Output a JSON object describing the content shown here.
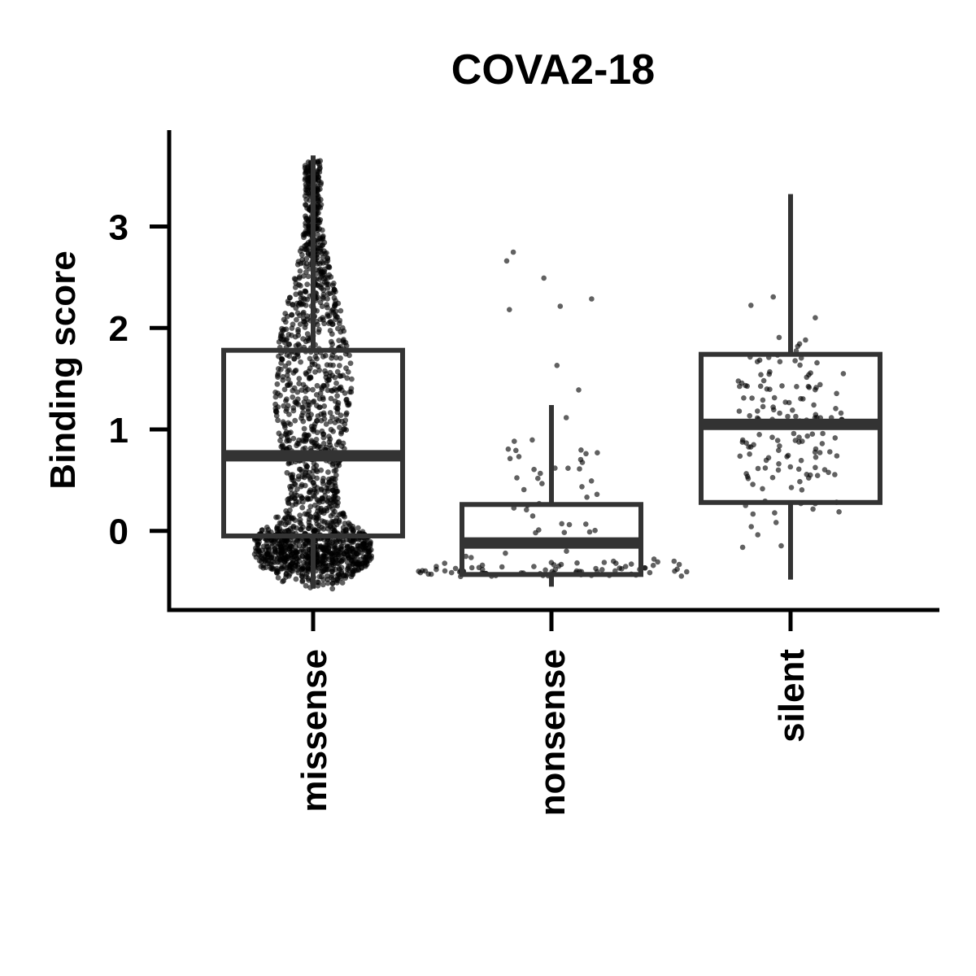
{
  "chart_data": {
    "type": "box",
    "title": "COVA2-18",
    "xlabel": "",
    "ylabel": "Binding score",
    "ylim": [
      -0.78,
      3.95
    ],
    "yticks": [
      0,
      1,
      2,
      3
    ],
    "grid": false,
    "categories": [
      "missense",
      "nonsense",
      "silent"
    ],
    "boxes": [
      {
        "category": "missense",
        "q1": -0.05,
        "median": 0.74,
        "q3": 1.78,
        "whisker_low": -0.57,
        "whisker_high": 3.7,
        "n_points": 1800
      },
      {
        "category": "nonsense",
        "q1": -0.43,
        "median": -0.12,
        "q3": 0.26,
        "whisker_low": -0.55,
        "whisker_high": 1.24,
        "n_points": 130
      },
      {
        "category": "silent",
        "q1": 0.28,
        "median": 1.05,
        "q3": 1.74,
        "whisker_low": -0.48,
        "whisker_high": 3.32,
        "n_points": 150
      }
    ],
    "point_color": "#000000",
    "box_color": "#333333"
  }
}
